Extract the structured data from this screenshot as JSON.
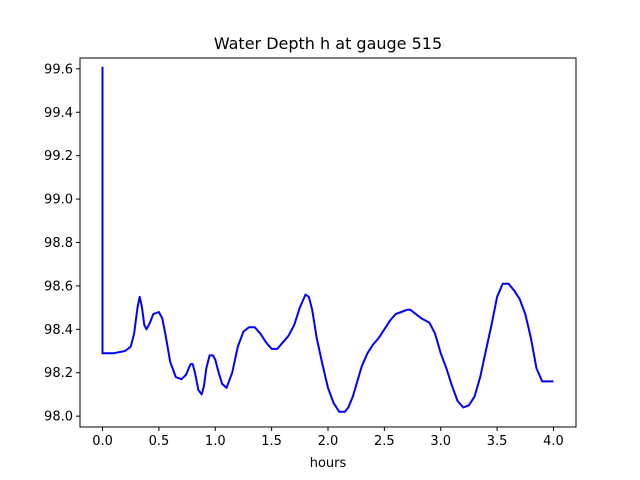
{
  "chart_data": {
    "type": "line",
    "title": "Water Depth h at gauge 515",
    "xlabel": "hours",
    "ylabel": "",
    "xlim": [
      -0.2,
      4.2
    ],
    "ylim": [
      97.95,
      99.65
    ],
    "xticks": [
      0.0,
      0.5,
      1.0,
      1.5,
      2.0,
      2.5,
      3.0,
      3.5,
      4.0
    ],
    "xtick_labels": [
      "0.0",
      "0.5",
      "1.0",
      "1.5",
      "2.0",
      "2.5",
      "3.0",
      "3.5",
      "4.0"
    ],
    "yticks": [
      98.0,
      98.2,
      98.4,
      98.6,
      98.8,
      99.0,
      99.2,
      99.4,
      99.6
    ],
    "ytick_labels": [
      "98.0",
      "98.2",
      "98.4",
      "98.6",
      "98.8",
      "99.0",
      "99.2",
      "99.4",
      "99.6"
    ],
    "grid": false,
    "series": [
      {
        "color": "#0000ff",
        "x": [
          0.0,
          0.0,
          0.0,
          0.1,
          0.2,
          0.25,
          0.28,
          0.31,
          0.33,
          0.35,
          0.37,
          0.39,
          0.42,
          0.45,
          0.5,
          0.53,
          0.56,
          0.6,
          0.65,
          0.7,
          0.74,
          0.78,
          0.8,
          0.82,
          0.85,
          0.88,
          0.9,
          0.92,
          0.95,
          0.98,
          1.0,
          1.03,
          1.06,
          1.1,
          1.15,
          1.2,
          1.25,
          1.3,
          1.35,
          1.4,
          1.45,
          1.5,
          1.55,
          1.6,
          1.65,
          1.7,
          1.75,
          1.8,
          1.83,
          1.86,
          1.9,
          1.95,
          2.0,
          2.05,
          2.1,
          2.15,
          2.18,
          2.22,
          2.26,
          2.3,
          2.35,
          2.4,
          2.45,
          2.5,
          2.55,
          2.6,
          2.65,
          2.7,
          2.73,
          2.78,
          2.83,
          2.9,
          2.95,
          3.0,
          3.05,
          3.1,
          3.15,
          3.2,
          3.25,
          3.3,
          3.35,
          3.4,
          3.45,
          3.5,
          3.55,
          3.6,
          3.65,
          3.7,
          3.75,
          3.8,
          3.85,
          3.9,
          3.95,
          4.0
        ],
        "y": [
          99.61,
          98.29,
          98.29,
          98.29,
          98.3,
          98.32,
          98.38,
          98.5,
          98.55,
          98.5,
          98.42,
          98.4,
          98.43,
          98.47,
          98.48,
          98.45,
          98.37,
          98.25,
          98.18,
          98.17,
          98.19,
          98.24,
          98.24,
          98.2,
          98.12,
          98.1,
          98.14,
          98.22,
          98.28,
          98.28,
          98.26,
          98.2,
          98.15,
          98.13,
          98.2,
          98.32,
          98.39,
          98.41,
          98.41,
          98.38,
          98.34,
          98.31,
          98.31,
          98.34,
          98.37,
          98.42,
          98.5,
          98.56,
          98.55,
          98.49,
          98.36,
          98.24,
          98.13,
          98.06,
          98.02,
          98.02,
          98.04,
          98.09,
          98.16,
          98.23,
          98.29,
          98.33,
          98.36,
          98.4,
          98.44,
          98.47,
          98.48,
          98.49,
          98.49,
          98.47,
          98.45,
          98.43,
          98.38,
          98.29,
          98.22,
          98.14,
          98.07,
          98.04,
          98.05,
          98.09,
          98.18,
          98.3,
          98.42,
          98.55,
          98.61,
          98.61,
          98.58,
          98.54,
          98.47,
          98.36,
          98.22,
          98.16,
          98.16,
          98.16
        ]
      }
    ]
  }
}
